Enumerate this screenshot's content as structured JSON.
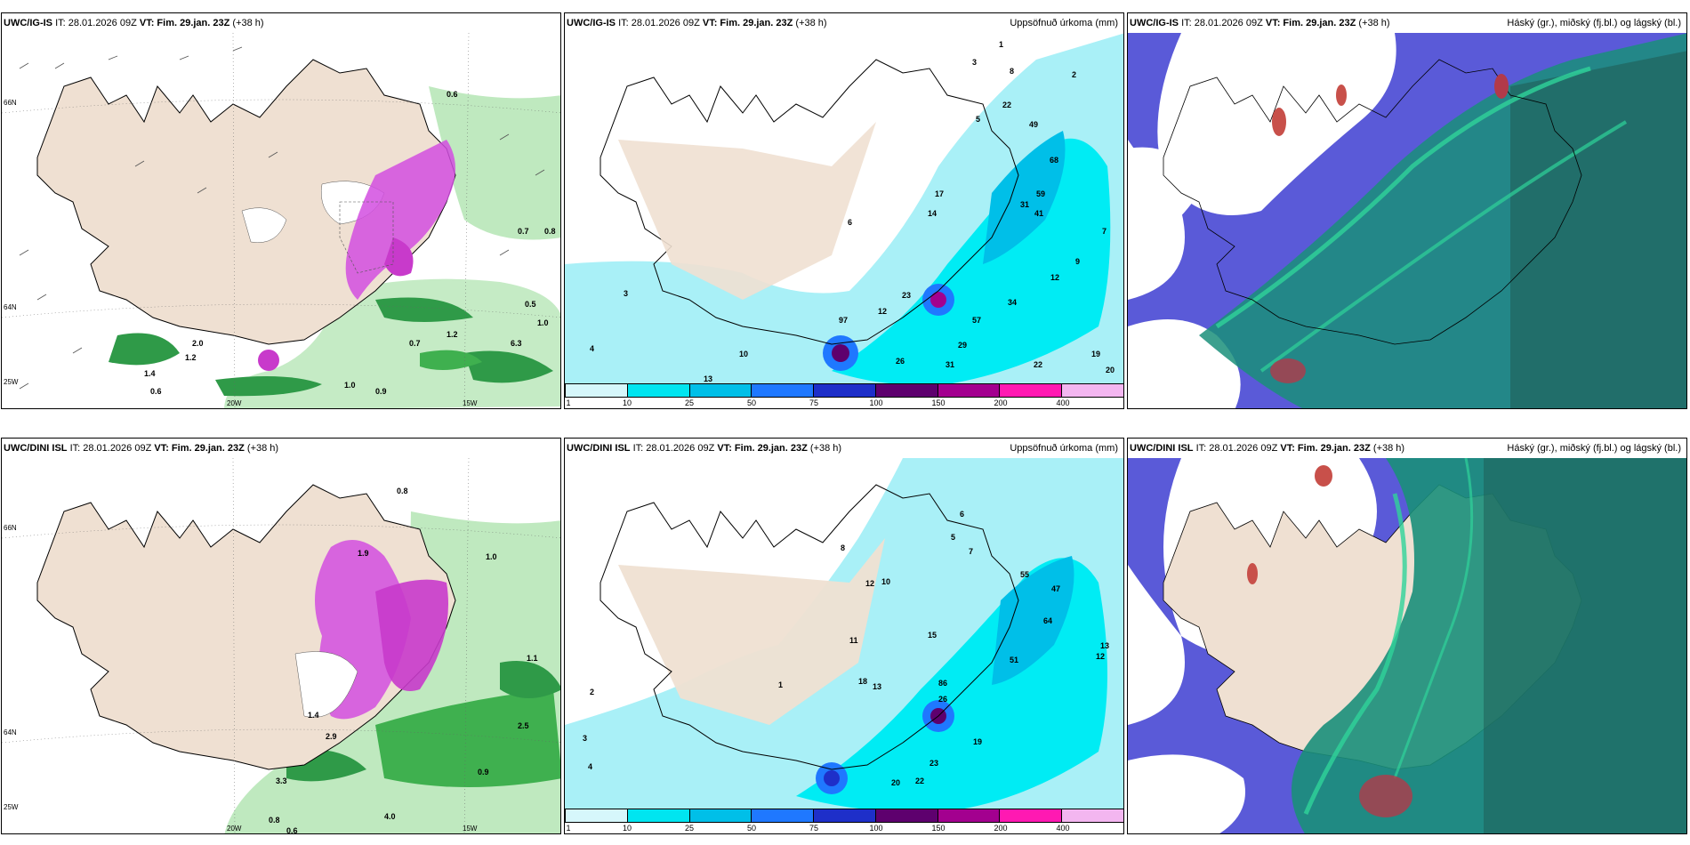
{
  "panels": [
    {
      "model": "UWC/IG-IS",
      "it": "IT: 28.01.2026 09Z",
      "vt": "VT: Fim. 29.jan. 23Z",
      "lead": "(+38 h)",
      "right": ""
    },
    {
      "model": "UWC/IG-IS",
      "it": "IT: 28.01.2026 09Z",
      "vt": "VT: Fim. 29.jan. 23Z",
      "lead": "(+38 h)",
      "right": "Uppsöfnuð úrkoma (mm)"
    },
    {
      "model": "UWC/IG-IS",
      "it": "IT: 28.01.2026 09Z",
      "vt": "VT: Fim. 29.jan. 23Z",
      "lead": "(+38 h)",
      "right": "Háský (gr.), miðský (fj.bl.) og lágský (bl.)"
    },
    {
      "model": "UWC/DINI ISL",
      "it": "IT: 28.01.2026 09Z",
      "vt": "VT: Fim. 29.jan. 23Z",
      "lead": "(+38 h)",
      "right": ""
    },
    {
      "model": "UWC/DINI ISL",
      "it": "IT: 28.01.2026 09Z",
      "vt": "VT: Fim. 29.jan. 23Z",
      "lead": "(+38 h)",
      "right": "Uppsöfnuð úrkoma (mm)"
    },
    {
      "model": "UWC/DINI ISL",
      "it": "IT: 28.01.2026 09Z",
      "vt": "VT: Fim. 29.jan. 23Z",
      "lead": "(+38 h)",
      "right": "Háský (gr.), miðský (fj.bl.) og lágský (bl.)"
    }
  ],
  "axis_labels": {
    "lat66": "66N",
    "lat64": "64N",
    "lon25": "25W",
    "lon20": "20W",
    "lon15": "15W"
  },
  "legend": {
    "ticks": [
      "1",
      "10",
      "25",
      "50",
      "75",
      "100",
      "150",
      "200",
      "400"
    ],
    "colors": [
      "#d6f7fb",
      "#00e5f0",
      "#00bfe8",
      "#1f78ff",
      "#1e2fc9",
      "#5e006e",
      "#a3008f",
      "#ff19b2",
      "#f3b6f0"
    ]
  },
  "colors": {
    "land": "#efe0d2",
    "precip_light": "#a9f0f7",
    "precip_cyan": "#00ecf4",
    "wind_green": "#3fb04f",
    "snow_magenta": "#d24de0",
    "low_cloud": "#3b3bd0",
    "mid_cloud": "#1a8f7a",
    "high_cloud": "#2fd39a"
  },
  "labels": {
    "p1": [
      "0.6",
      "0.7",
      "0.8",
      "0.5",
      "1.0",
      "6.3",
      "1.2",
      "2.0",
      "1.4",
      "0.6",
      "1.0",
      "0.9",
      "0.7",
      "1.2"
    ],
    "p2": [
      "1",
      "2",
      "3",
      "5",
      "8",
      "22",
      "49",
      "68",
      "59",
      "41",
      "31",
      "14",
      "17",
      "57",
      "34",
      "29",
      "31",
      "12",
      "19",
      "20",
      "22",
      "26",
      "13",
      "10",
      "97",
      "4",
      "3",
      "6",
      "7",
      "12",
      "23",
      "9"
    ],
    "p4": [
      "0.8",
      "1.9",
      "1.0",
      "1.4",
      "2.9",
      "0.9",
      "0.8",
      "0.6",
      "3.3",
      "4.0",
      "2.5",
      "1.1"
    ],
    "p5": [
      "1",
      "2",
      "3",
      "4",
      "5",
      "6",
      "7",
      "8",
      "10",
      "11",
      "12",
      "13",
      "15",
      "18",
      "20",
      "22",
      "23",
      "26",
      "47",
      "55",
      "51",
      "64",
      "13",
      "12",
      "19",
      "86"
    ]
  }
}
